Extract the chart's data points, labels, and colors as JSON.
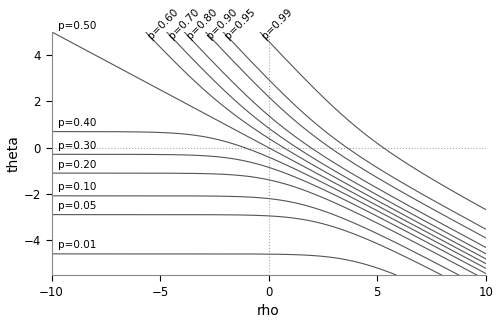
{
  "p_values_upper": [
    0.5,
    0.6,
    0.7,
    0.8,
    0.9,
    0.95,
    0.99
  ],
  "p_values_lower": [
    0.4,
    0.3,
    0.2,
    0.1,
    0.05,
    0.01
  ],
  "rho_min": -10,
  "rho_max": 10,
  "theta_min": -5.5,
  "theta_max": 5.0,
  "line_color": "#555555",
  "line_width": 0.8,
  "xlabel": "rho",
  "ylabel": "theta",
  "yticks": [
    -4,
    -2,
    0,
    2,
    4
  ],
  "xticks": [
    -10,
    -5,
    0,
    5,
    10
  ],
  "bg_color": "#ffffff",
  "dashed_line_color": "#aaaaaa",
  "label_fontsize": 7.5,
  "axis_fontsize": 10,
  "spine_color": "#888888"
}
